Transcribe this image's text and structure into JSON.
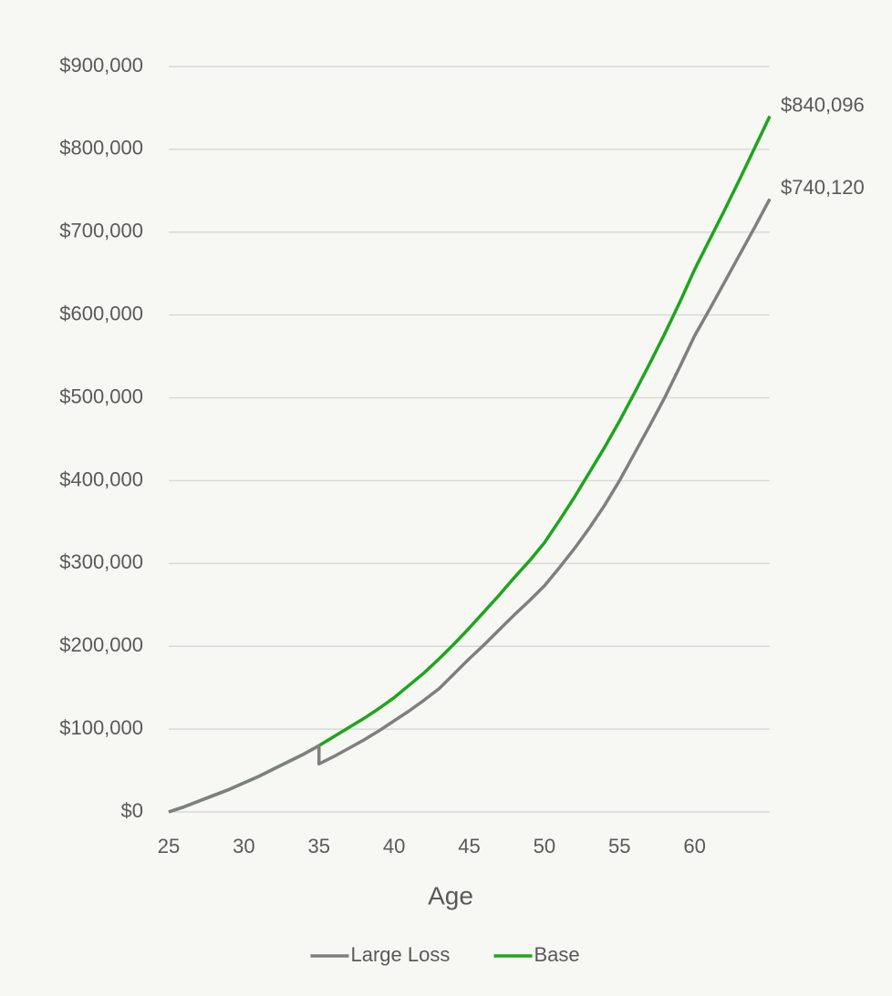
{
  "chart_data": {
    "type": "line",
    "xlabel": "Age",
    "x": [
      25,
      26,
      27,
      28,
      29,
      30,
      31,
      32,
      33,
      34,
      35,
      35,
      36,
      37,
      38,
      39,
      40,
      41,
      42,
      43,
      44,
      45,
      46,
      47,
      48,
      49,
      50,
      51,
      52,
      53,
      54,
      55,
      56,
      57,
      58,
      59,
      60,
      61,
      62,
      63,
      64,
      65
    ],
    "series": [
      {
        "name": "Large Loss",
        "color": "#7f7f7f",
        "values": [
          0,
          6000,
          13000,
          20000,
          27000,
          35000,
          43000,
          52000,
          61000,
          70000,
          80000,
          58000,
          67000,
          77000,
          87000,
          98000,
          110000,
          122000,
          135000,
          149000,
          167000,
          185000,
          202000,
          220000,
          238000,
          255000,
          273000,
          295000,
          318000,
          343000,
          370000,
          400000,
          433000,
          466000,
          500000,
          537000,
          575000,
          607000,
          640000,
          673000,
          706000,
          740120
        ],
        "value_labels": [
          null,
          null,
          null,
          null,
          null,
          null,
          null,
          null,
          null,
          null,
          null,
          null,
          null,
          null,
          null,
          null,
          null,
          null,
          null,
          null,
          null,
          null,
          null,
          null,
          null,
          null,
          null,
          null,
          null,
          null,
          null,
          null,
          null,
          null,
          null,
          null,
          null,
          null,
          null,
          null,
          null,
          "$740,120"
        ]
      },
      {
        "name": "Base",
        "color": "#1ea51e",
        "values": [
          0,
          6000,
          13000,
          20000,
          27000,
          35000,
          43000,
          52000,
          61000,
          70000,
          80000,
          80000,
          91000,
          102000,
          113000,
          125000,
          138000,
          153000,
          168000,
          185000,
          203000,
          222000,
          242000,
          262000,
          283000,
          303000,
          325000,
          352000,
          380000,
          410000,
          440000,
          472000,
          506000,
          541000,
          577000,
          615000,
          655000,
          691000,
          727000,
          764000,
          802000,
          840096
        ],
        "value_labels": [
          null,
          null,
          null,
          null,
          null,
          null,
          null,
          null,
          null,
          null,
          null,
          null,
          null,
          null,
          null,
          null,
          null,
          null,
          null,
          null,
          null,
          null,
          null,
          null,
          null,
          null,
          null,
          null,
          null,
          null,
          null,
          null,
          null,
          null,
          null,
          null,
          null,
          null,
          null,
          null,
          null,
          "$840,096"
        ]
      }
    ],
    "xlim": [
      25,
      65
    ],
    "ylim": [
      0,
      900000
    ],
    "xticks": [
      25,
      30,
      35,
      40,
      45,
      50,
      55,
      60
    ],
    "yticks": [
      {
        "value": 0,
        "label": "$0"
      },
      {
        "value": 100000,
        "label": "$100,000"
      },
      {
        "value": 200000,
        "label": "$200,000"
      },
      {
        "value": 300000,
        "label": "$300,000"
      },
      {
        "value": 400000,
        "label": "$400,000"
      },
      {
        "value": 500000,
        "label": "$500,000"
      },
      {
        "value": 600000,
        "label": "$600,000"
      },
      {
        "value": 700000,
        "label": "$700,000"
      },
      {
        "value": 800000,
        "label": "$800,000"
      },
      {
        "value": 900000,
        "label": "$900,000"
      }
    ],
    "grid": true,
    "legend": "bottom"
  }
}
